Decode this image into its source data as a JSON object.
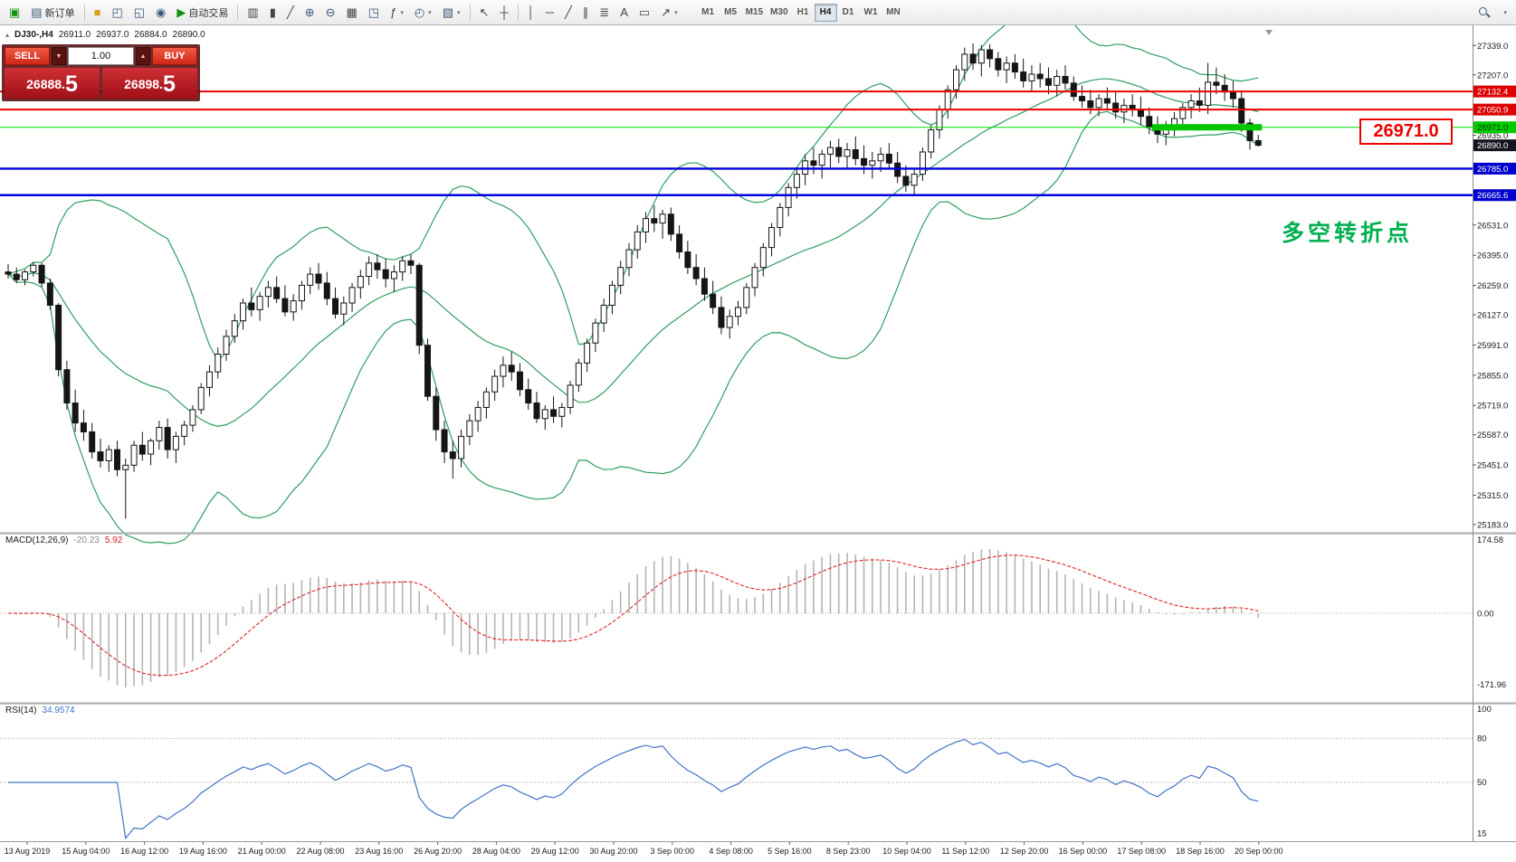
{
  "toolbar": {
    "new_order": "新订单",
    "auto_trading": "自动交易",
    "timeframes": [
      "M1",
      "M5",
      "M15",
      "M30",
      "H1",
      "H4",
      "D1",
      "W1",
      "MN"
    ],
    "active_timeframe": "H4"
  },
  "icons": {
    "app_icon": "▣",
    "new_order_icon": "▤",
    "folder_icon": "■",
    "window_icon": "◰",
    "window2_icon": "◱",
    "sound_icon": "◉",
    "autotrade_play_icon": "▶",
    "chart_bars_icon": "▥",
    "chart_candles_icon": "▮",
    "chart_line_icon": "╱",
    "zoom_in_icon": "⊕",
    "zoom_out_icon": "⊖",
    "grid_icon": "▦",
    "tile_windows_icon": "◳",
    "indicators_icon": "ƒ",
    "clock_icon": "◴",
    "template_icon": "▧",
    "cursor_icon": "↖",
    "crosshair_icon": "┼",
    "vline_icon": "│",
    "hline_icon": "─",
    "trendline_icon": "╱",
    "channel_icon": "∥",
    "fibo_icon": "≣",
    "text_icon": "A",
    "label_icon": "▭",
    "arrow_icon": "↗",
    "caret": "▾"
  },
  "symbol_header": {
    "marker": "▴",
    "symbol": "DJ30-,H4",
    "open": "26911.0",
    "high": "26937.0",
    "low": "26884.0",
    "close": "26890.0"
  },
  "trade_panel": {
    "sell_label": "SELL",
    "buy_label": "BUY",
    "dec": "▼",
    "inc": "▲",
    "volume": "1.00",
    "sell_price_main": "26888.",
    "sell_price_big": "5",
    "buy_price_main": "26898.",
    "buy_price_big": "5"
  },
  "annotations": {
    "price_callout": "26971.0",
    "turning_point": "多空转折点"
  },
  "price_axis": {
    "ticks": [
      27339.0,
      27207.0,
      26935.0,
      26531.0,
      26395.0,
      26259.0,
      26127.0,
      25991.0,
      25855.0,
      25719.0,
      25587.0,
      25451.0,
      25315.0,
      25183.0
    ],
    "badges": [
      {
        "value": "27132.4",
        "price": 27132.4,
        "color": "#dd0000",
        "text": "#ffffff"
      },
      {
        "value": "27050.9",
        "price": 27050.9,
        "color": "#dd0000",
        "text": "#ffffff"
      },
      {
        "value": "26971.0",
        "price": 26971.0,
        "color": "#00cc00",
        "text": "#083808"
      },
      {
        "value": "26890.0",
        "price": 26890.0,
        "color": "#15151f",
        "text": "#ffffff"
      },
      {
        "value": "26785.0",
        "price": 26785.0,
        "color": "#0000cc",
        "text": "#ffffff"
      },
      {
        "value": "26665.6",
        "price": 26665.6,
        "color": "#0000cc",
        "text": "#ffffff"
      }
    ]
  },
  "hlines": [
    {
      "price": 27132.4,
      "color": "#ee0000",
      "width": 2
    },
    {
      "price": 27050.9,
      "color": "#ee0000",
      "width": 2
    },
    {
      "price": 26971.0,
      "color": "#00dd00",
      "width": 1
    },
    {
      "price": 26785.0,
      "color": "#0000dd",
      "width": 2.4
    },
    {
      "price": 26665.6,
      "color": "#0000dd",
      "width": 2.4
    }
  ],
  "thick_segment": {
    "price": 26971.0,
    "start_index": 137,
    "end_index": 149,
    "color": "#00c800",
    "height": 7
  },
  "macd": {
    "label": "MACD(12,26,9)",
    "main_value": "-20.23",
    "signal_value": "5.92",
    "axis_labels": [
      "174.58",
      "0.00",
      "-171.96"
    ],
    "params": [
      12,
      26,
      9
    ]
  },
  "rsi": {
    "label": "RSI(14)",
    "value": "34.9574",
    "axis_labels": [
      "100",
      "80",
      "50",
      "15"
    ],
    "levels": [
      80,
      50
    ],
    "period": 14
  },
  "time_axis": [
    "13 Aug 2019",
    "15 Aug 04:00",
    "16 Aug 12:00",
    "19 Aug 16:00",
    "21 Aug 00:00",
    "22 Aug 08:00",
    "23 Aug 16:00",
    "26 Aug 20:00",
    "28 Aug 04:00",
    "29 Aug 12:00",
    "30 Aug 20:00",
    "3 Sep 00:00",
    "4 Sep 08:00",
    "5 Sep 16:00",
    "8 Sep 23:00",
    "10 Sep 04:00",
    "11 Sep 12:00",
    "12 Sep 20:00",
    "16 Sep 00:00",
    "17 Sep 08:00",
    "18 Sep 16:00",
    "20 Sep 00:00"
  ],
  "chart_data": {
    "type": "candlestick",
    "symbol": "DJ30-",
    "timeframe": "H4",
    "title": "DJ30-,H4 26911.0 26937.0 26884.0 26890.0",
    "ylim": [
      25150,
      27430
    ],
    "x_range": [
      "13 Aug 2019",
      "20 Sep 2019"
    ],
    "current_bar": {
      "open": 26911.0,
      "high": 26937.0,
      "low": 26884.0,
      "close": 26890.0
    },
    "overlays": {
      "bollinger_period": 20,
      "bollinger_deviation": 2
    },
    "candles": [
      [
        26320,
        26355,
        26290,
        26310
      ],
      [
        26310,
        26340,
        26270,
        26285
      ],
      [
        26285,
        26330,
        26260,
        26320
      ],
      [
        26320,
        26365,
        26300,
        26350
      ],
      [
        26350,
        26360,
        26250,
        26270
      ],
      [
        26270,
        26290,
        26150,
        26170
      ],
      [
        26170,
        26180,
        25850,
        25880
      ],
      [
        25880,
        25920,
        25700,
        25730
      ],
      [
        25730,
        25790,
        25600,
        25640
      ],
      [
        25640,
        25700,
        25560,
        25600
      ],
      [
        25600,
        25640,
        25480,
        25510
      ],
      [
        25510,
        25570,
        25440,
        25470
      ],
      [
        25470,
        25540,
        25420,
        25520
      ],
      [
        25520,
        25560,
        25400,
        25430
      ],
      [
        25430,
        25480,
        25210,
        25450
      ],
      [
        25450,
        25560,
        25420,
        25540
      ],
      [
        25540,
        25600,
        25470,
        25500
      ],
      [
        25500,
        25570,
        25450,
        25560
      ],
      [
        25560,
        25650,
        25520,
        25620
      ],
      [
        25620,
        25660,
        25480,
        25520
      ],
      [
        25520,
        25600,
        25460,
        25580
      ],
      [
        25580,
        25650,
        25540,
        25630
      ],
      [
        25630,
        25720,
        25600,
        25700
      ],
      [
        25700,
        25820,
        25680,
        25800
      ],
      [
        25800,
        25900,
        25760,
        25870
      ],
      [
        25870,
        25980,
        25840,
        25950
      ],
      [
        25950,
        26060,
        25920,
        26030
      ],
      [
        26030,
        26130,
        26000,
        26100
      ],
      [
        26100,
        26200,
        26060,
        26180
      ],
      [
        26180,
        26250,
        26120,
        26150
      ],
      [
        26150,
        26230,
        26100,
        26210
      ],
      [
        26210,
        26280,
        26160,
        26250
      ],
      [
        26250,
        26300,
        26180,
        26200
      ],
      [
        26200,
        26260,
        26120,
        26140
      ],
      [
        26140,
        26220,
        26100,
        26190
      ],
      [
        26190,
        26280,
        26150,
        26260
      ],
      [
        26260,
        26340,
        26220,
        26310
      ],
      [
        26310,
        26360,
        26240,
        26270
      ],
      [
        26270,
        26320,
        26170,
        26200
      ],
      [
        26200,
        26250,
        26110,
        26130
      ],
      [
        26130,
        26210,
        26080,
        26180
      ],
      [
        26180,
        26270,
        26140,
        26250
      ],
      [
        26250,
        26330,
        26200,
        26300
      ],
      [
        26300,
        26390,
        26260,
        26360
      ],
      [
        26360,
        26400,
        26290,
        26330
      ],
      [
        26330,
        26380,
        26250,
        26290
      ],
      [
        26290,
        26350,
        26230,
        26320
      ],
      [
        26320,
        26390,
        26280,
        26370
      ],
      [
        26370,
        26400,
        26310,
        26350
      ],
      [
        26350,
        26360,
        25950,
        25990
      ],
      [
        25990,
        26020,
        25740,
        25760
      ],
      [
        25760,
        25800,
        25560,
        25610
      ],
      [
        25610,
        25650,
        25460,
        25510
      ],
      [
        25510,
        25560,
        25390,
        25480
      ],
      [
        25480,
        25610,
        25440,
        25580
      ],
      [
        25580,
        25680,
        25540,
        25650
      ],
      [
        25650,
        25740,
        25600,
        25710
      ],
      [
        25710,
        25800,
        25660,
        25780
      ],
      [
        25780,
        25880,
        25740,
        25850
      ],
      [
        25850,
        25940,
        25800,
        25900
      ],
      [
        25900,
        25960,
        25830,
        25870
      ],
      [
        25870,
        25910,
        25760,
        25790
      ],
      [
        25790,
        25840,
        25700,
        25730
      ],
      [
        25730,
        25780,
        25640,
        25660
      ],
      [
        25660,
        25720,
        25610,
        25700
      ],
      [
        25700,
        25760,
        25640,
        25670
      ],
      [
        25670,
        25730,
        25620,
        25710
      ],
      [
        25710,
        25830,
        25680,
        25810
      ],
      [
        25810,
        25930,
        25780,
        25910
      ],
      [
        25910,
        26020,
        25870,
        26000
      ],
      [
        26000,
        26110,
        25960,
        26090
      ],
      [
        26090,
        26200,
        26050,
        26170
      ],
      [
        26170,
        26280,
        26130,
        26260
      ],
      [
        26260,
        26370,
        26220,
        26340
      ],
      [
        26340,
        26450,
        26300,
        26420
      ],
      [
        26420,
        26530,
        26380,
        26500
      ],
      [
        26500,
        26590,
        26450,
        26560
      ],
      [
        26560,
        26620,
        26500,
        26540
      ],
      [
        26540,
        26600,
        26470,
        26580
      ],
      [
        26580,
        26610,
        26460,
        26490
      ],
      [
        26490,
        26530,
        26380,
        26410
      ],
      [
        26410,
        26460,
        26310,
        26340
      ],
      [
        26340,
        26400,
        26260,
        26290
      ],
      [
        26290,
        26340,
        26190,
        26220
      ],
      [
        26220,
        26280,
        26130,
        26160
      ],
      [
        26160,
        26210,
        26040,
        26070
      ],
      [
        26070,
        26150,
        26020,
        26120
      ],
      [
        26120,
        26190,
        26080,
        26160
      ],
      [
        26160,
        26270,
        26130,
        26250
      ],
      [
        26250,
        26360,
        26210,
        26340
      ],
      [
        26340,
        26450,
        26300,
        26430
      ],
      [
        26430,
        26540,
        26390,
        26520
      ],
      [
        26520,
        26630,
        26480,
        26610
      ],
      [
        26610,
        26720,
        26570,
        26700
      ],
      [
        26700,
        26790,
        26650,
        26760
      ],
      [
        26760,
        26850,
        26710,
        26820
      ],
      [
        26820,
        26880,
        26760,
        26800
      ],
      [
        26800,
        26870,
        26740,
        26850
      ],
      [
        26850,
        26910,
        26790,
        26880
      ],
      [
        26880,
        26920,
        26810,
        26840
      ],
      [
        26840,
        26900,
        26780,
        26870
      ],
      [
        26870,
        26930,
        26800,
        26830
      ],
      [
        26830,
        26890,
        26760,
        26800
      ],
      [
        26800,
        26860,
        26740,
        26820
      ],
      [
        26820,
        26880,
        26770,
        26850
      ],
      [
        26850,
        26900,
        26780,
        26810
      ],
      [
        26810,
        26860,
        26720,
        26750
      ],
      [
        26750,
        26800,
        26680,
        26710
      ],
      [
        26710,
        26780,
        26670,
        26760
      ],
      [
        26760,
        26880,
        26730,
        26860
      ],
      [
        26860,
        26980,
        26830,
        26960
      ],
      [
        26960,
        27070,
        26920,
        27050
      ],
      [
        27050,
        27160,
        27010,
        27140
      ],
      [
        27140,
        27250,
        27100,
        27230
      ],
      [
        27230,
        27330,
        27180,
        27300
      ],
      [
        27300,
        27348,
        27230,
        27260
      ],
      [
        27260,
        27340,
        27200,
        27320
      ],
      [
        27320,
        27345,
        27240,
        27280
      ],
      [
        27280,
        27310,
        27200,
        27230
      ],
      [
        27230,
        27290,
        27170,
        27260
      ],
      [
        27260,
        27300,
        27190,
        27220
      ],
      [
        27220,
        27280,
        27150,
        27180
      ],
      [
        27180,
        27250,
        27130,
        27210
      ],
      [
        27210,
        27260,
        27150,
        27190
      ],
      [
        27190,
        27240,
        27120,
        27160
      ],
      [
        27160,
        27230,
        27110,
        27200
      ],
      [
        27200,
        27250,
        27140,
        27170
      ],
      [
        27170,
        27200,
        27090,
        27110
      ],
      [
        27110,
        27160,
        27060,
        27090
      ],
      [
        27090,
        27140,
        27030,
        27060
      ],
      [
        27060,
        27120,
        27020,
        27100
      ],
      [
        27100,
        27150,
        27050,
        27080
      ],
      [
        27080,
        27130,
        27010,
        27040
      ],
      [
        27040,
        27100,
        26990,
        27070
      ],
      [
        27070,
        27120,
        27020,
        27050
      ],
      [
        27050,
        27110,
        26980,
        27020
      ],
      [
        27020,
        27060,
        26940,
        26970
      ],
      [
        26970,
        27020,
        26900,
        26940
      ],
      [
        26940,
        27000,
        26890,
        26980
      ],
      [
        26980,
        27040,
        26930,
        27010
      ],
      [
        27010,
        27080,
        26970,
        27060
      ],
      [
        27060,
        27120,
        27010,
        27090
      ],
      [
        27090,
        27150,
        27040,
        27070
      ],
      [
        27070,
        27261,
        27030,
        27174
      ],
      [
        27174,
        27240,
        27120,
        27160
      ],
      [
        27160,
        27210,
        27090,
        27130
      ],
      [
        27130,
        27180,
        27060,
        27100
      ],
      [
        27100,
        27130,
        26950,
        26990
      ],
      [
        26990,
        27010,
        26870,
        26911
      ],
      [
        26911,
        26937,
        26884,
        26890
      ]
    ]
  }
}
